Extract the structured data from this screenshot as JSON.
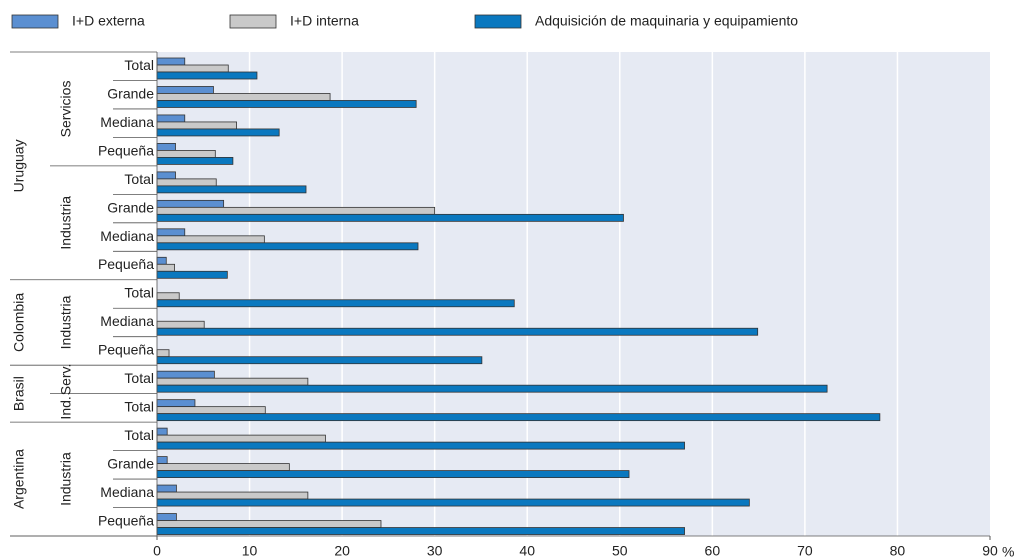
{
  "chart_data": {
    "type": "bar",
    "orientation": "horizontal",
    "groups": [
      {
        "label": "Uruguay",
        "groups": [
          {
            "label": "Servicios",
            "categories": [
              "Total",
              "Grande",
              "Mediana",
              "Pequeña"
            ]
          },
          {
            "label": "Industria",
            "categories": [
              "Total",
              "Grande",
              "Mediana",
              "Pequeña"
            ]
          }
        ]
      },
      {
        "label": "Colombia",
        "groups": [
          {
            "label": "Industria",
            "categories": [
              "Total",
              "Mediana",
              "Pequeña"
            ]
          }
        ]
      },
      {
        "label": "Brasil",
        "groups": [
          {
            "label": "Serv.",
            "categories": [
              "Total"
            ]
          },
          {
            "label": "Ind.",
            "categories": [
              "Total"
            ]
          }
        ]
      },
      {
        "label": "Argentina",
        "groups": [
          {
            "label": "Industria",
            "categories": [
              "Total",
              "Grande",
              "Mediana",
              "Pequeña"
            ]
          }
        ]
      }
    ],
    "series": [
      {
        "name": "I+D externa",
        "color": "#5b8fd1",
        "values": [
          3.0,
          6.1,
          3.0,
          2.0,
          2.0,
          7.2,
          3.0,
          1.0,
          null,
          null,
          null,
          6.2,
          4.1,
          1.1,
          1.1,
          2.1,
          2.1
        ]
      },
      {
        "name": "I+D interna",
        "color": "#c9c9c9",
        "values": [
          7.7,
          18.7,
          8.6,
          6.3,
          6.4,
          30.0,
          11.6,
          1.9,
          2.4,
          5.1,
          1.3,
          16.3,
          11.7,
          18.2,
          14.3,
          16.3,
          24.2
        ]
      },
      {
        "name": "Adquisición de maquinaria y equipamiento",
        "color": "#0a78bf",
        "values": [
          10.8,
          28.0,
          13.2,
          8.2,
          16.1,
          50.4,
          28.2,
          7.6,
          38.6,
          64.9,
          35.1,
          72.4,
          78.1,
          57.0,
          51.0,
          64.0,
          57.0
        ]
      }
    ],
    "xlim": [
      0,
      90
    ],
    "xticks": [
      0,
      10,
      20,
      30,
      40,
      50,
      60,
      70,
      80,
      90
    ],
    "x_unit": "%",
    "grid": true
  }
}
